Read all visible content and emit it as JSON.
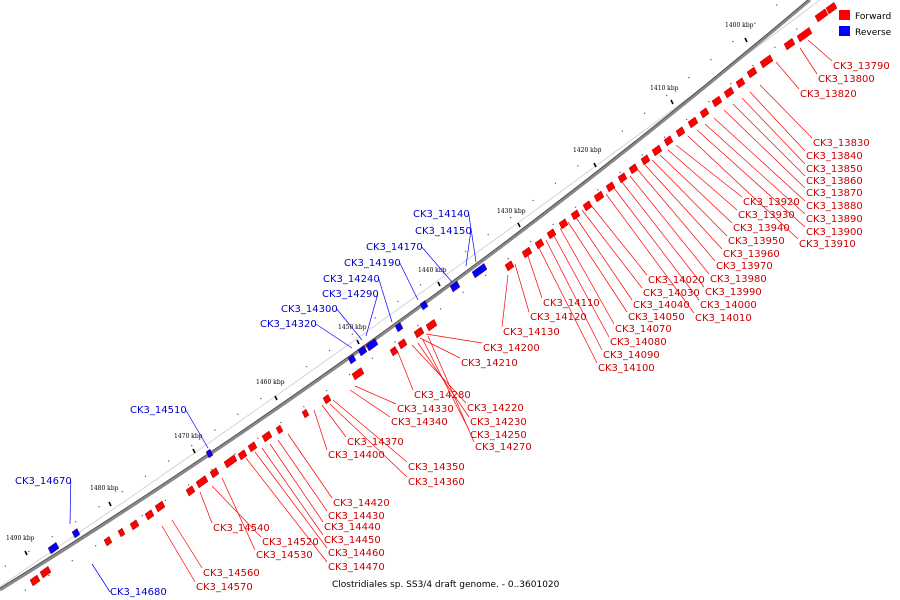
{
  "caption": "Clostridiales sp. SS3/4 draft genome. - 0..3601020",
  "legend": [
    {
      "label": "Forward",
      "color": "#ff0000"
    },
    {
      "label": "Reverse",
      "color": "#0000ff"
    }
  ],
  "colors": {
    "forward": "#ff0000",
    "reverse": "#0000ff",
    "backbone": "#888888"
  },
  "kbp_ticks": [
    "1400 kbp",
    "1410 kbp",
    "1420 kbp",
    "1430 kbp",
    "1440 kbp",
    "1450 kbp",
    "1460 kbp",
    "1470 kbp",
    "1480 kbp",
    "1490 kbp"
  ],
  "forward_labels": [
    "CK3_13790",
    "CK3_13800",
    "CK3_13820",
    "CK3_13830",
    "CK3_13840",
    "CK3_13850",
    "CK3_13860",
    "CK3_13870",
    "CK3_13880",
    "CK3_13890",
    "CK3_13900",
    "CK3_13910",
    "CK3_13920",
    "CK3_13930",
    "CK3_13940",
    "CK3_13950",
    "CK3_13960",
    "CK3_13970",
    "CK3_13980",
    "CK3_13990",
    "CK3_14000",
    "CK3_14010",
    "CK3_14020",
    "CK3_14030",
    "CK3_14040",
    "CK3_14050",
    "CK3_14070",
    "CK3_14080",
    "CK3_14090",
    "CK3_14100",
    "CK3_14110",
    "CK3_14120",
    "CK3_14130",
    "CK3_14200",
    "CK3_14210",
    "CK3_14280",
    "CK3_14220",
    "CK3_14230",
    "CK3_14250",
    "CK3_14270",
    "CK3_14330",
    "CK3_14340",
    "CK3_14370",
    "CK3_14400",
    "CK3_14350",
    "CK3_14360",
    "CK3_14420",
    "CK3_14430",
    "CK3_14440",
    "CK3_14450",
    "CK3_14460",
    "CK3_14470",
    "CK3_14540",
    "CK3_14520",
    "CK3_14530",
    "CK3_14560",
    "CK3_14570"
  ],
  "reverse_labels": [
    "CK3_14140",
    "CK3_14150",
    "CK3_14170",
    "CK3_14190",
    "CK3_14240",
    "CK3_14290",
    "CK3_14300",
    "CK3_14320",
    "CK3_14510",
    "CK3_14670",
    "CK3_14680"
  ]
}
